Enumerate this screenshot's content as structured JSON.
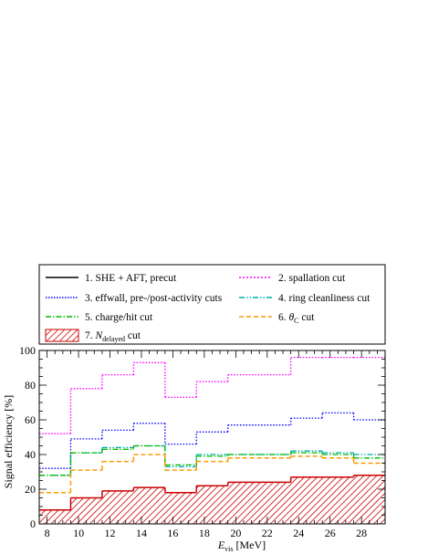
{
  "chart_data": {
    "type": "line",
    "subtype": "step-histogram",
    "xlabel_main": "E",
    "xlabel_sub": "vis",
    "xlabel_unit": " [MeV]",
    "ylabel": "Signal efficiency [%]",
    "xlim": [
      7.5,
      29.5
    ],
    "ylim": [
      0,
      100
    ],
    "x_ticks": [
      8,
      10,
      12,
      14,
      16,
      18,
      20,
      22,
      24,
      26,
      28
    ],
    "y_ticks": [
      0,
      20,
      40,
      60,
      80,
      100
    ],
    "grid": false,
    "legend_position": "top",
    "bin_edges": [
      7.5,
      9.5,
      11.5,
      13.5,
      15.5,
      17.5,
      19.5,
      23.5,
      25.5,
      27.5,
      29.5
    ],
    "series": [
      {
        "name": "1. SHE + AFT, precut",
        "style": "solid",
        "color": "#000000",
        "values": [
          null,
          null,
          null,
          null,
          null,
          null,
          null,
          null,
          null,
          null
        ]
      },
      {
        "name": "2. spallation cut",
        "style": "dotted",
        "color": "#ff00ff",
        "values": [
          52,
          78,
          86,
          93,
          73,
          82,
          86,
          96,
          96,
          96
        ]
      },
      {
        "name": "3. effwall, pre-/post-activity cuts",
        "style": "dotted",
        "color": "#0000ff",
        "values": [
          32,
          49,
          54,
          58,
          46,
          53,
          57,
          61,
          64,
          60
        ]
      },
      {
        "name": "4. ring cleanliness cut",
        "style": "dashdotdot",
        "color": "#00aaaa",
        "values": [
          28,
          41,
          44,
          45,
          33,
          40,
          40,
          42,
          41,
          40
        ]
      },
      {
        "name": "5. charge/hit cut",
        "style": "dashdot",
        "color": "#00bb00",
        "values": [
          28,
          41,
          43,
          45,
          34,
          39,
          40,
          41,
          40,
          38
        ]
      },
      {
        "name": "6. θ_C cut",
        "style": "dashed",
        "color": "#ff9900",
        "values": [
          18,
          31,
          36,
          40,
          31,
          36,
          38,
          39,
          38,
          35
        ]
      },
      {
        "name": "7. N_delayed cut",
        "style": "hatched-fill",
        "color": "#cc0000",
        "values": [
          8,
          15,
          19,
          21,
          18,
          22,
          24,
          27,
          27,
          28
        ]
      }
    ],
    "legend": {
      "items": [
        {
          "prefix": "1. SHE + AFT, precut"
        },
        {
          "prefix": "2. spallation cut"
        },
        {
          "prefix": "3. effwall, pre-/post-activity cuts"
        },
        {
          "prefix": "4. ring cleanliness cut"
        },
        {
          "prefix": "5. charge/hit cut"
        },
        {
          "prefix": "6. ",
          "sym": "θ",
          "sub": "C",
          "suffix": " cut"
        },
        {
          "prefix": "7. ",
          "sym": "N",
          "sub": "delayed",
          "suffix": " cut"
        }
      ]
    }
  }
}
